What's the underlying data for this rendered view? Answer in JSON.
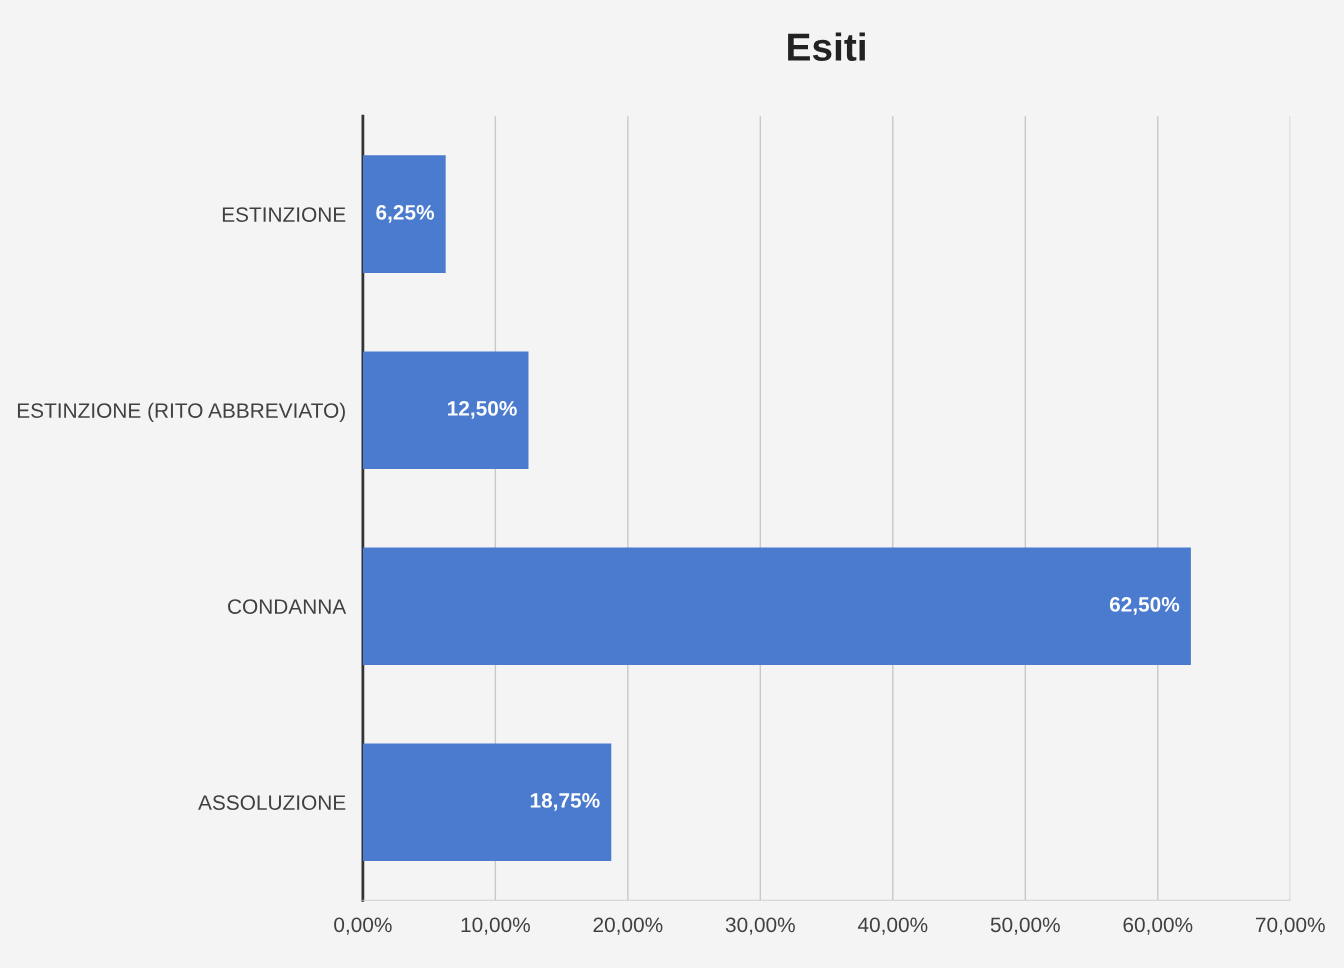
{
  "chart_data": {
    "type": "bar",
    "orientation": "horizontal",
    "title": "Esiti",
    "categories": [
      "ESTINZIONE",
      "ESTINZIONE (RITO ABBREVIATO)",
      "CONDANNA",
      "ASSOLUZIONE"
    ],
    "values": [
      6.25,
      12.5,
      62.5,
      18.75
    ],
    "value_labels": [
      "6,25%",
      "12,50%",
      "62,50%",
      "18,75%"
    ],
    "color": "#4a7bcf",
    "xlim": [
      0,
      70
    ],
    "xticks": [
      {
        "value": 0,
        "label": "0,00%"
      },
      {
        "value": 10,
        "label": "10,00%"
      },
      {
        "value": 20,
        "label": "20,00%"
      },
      {
        "value": 30,
        "label": "30,00%"
      },
      {
        "value": 40,
        "label": "40,00%"
      },
      {
        "value": 50,
        "label": "50,00%"
      },
      {
        "value": 60,
        "label": "60,00%"
      },
      {
        "value": 70,
        "label": "70,00%"
      }
    ],
    "grid": "x",
    "legend": false
  }
}
